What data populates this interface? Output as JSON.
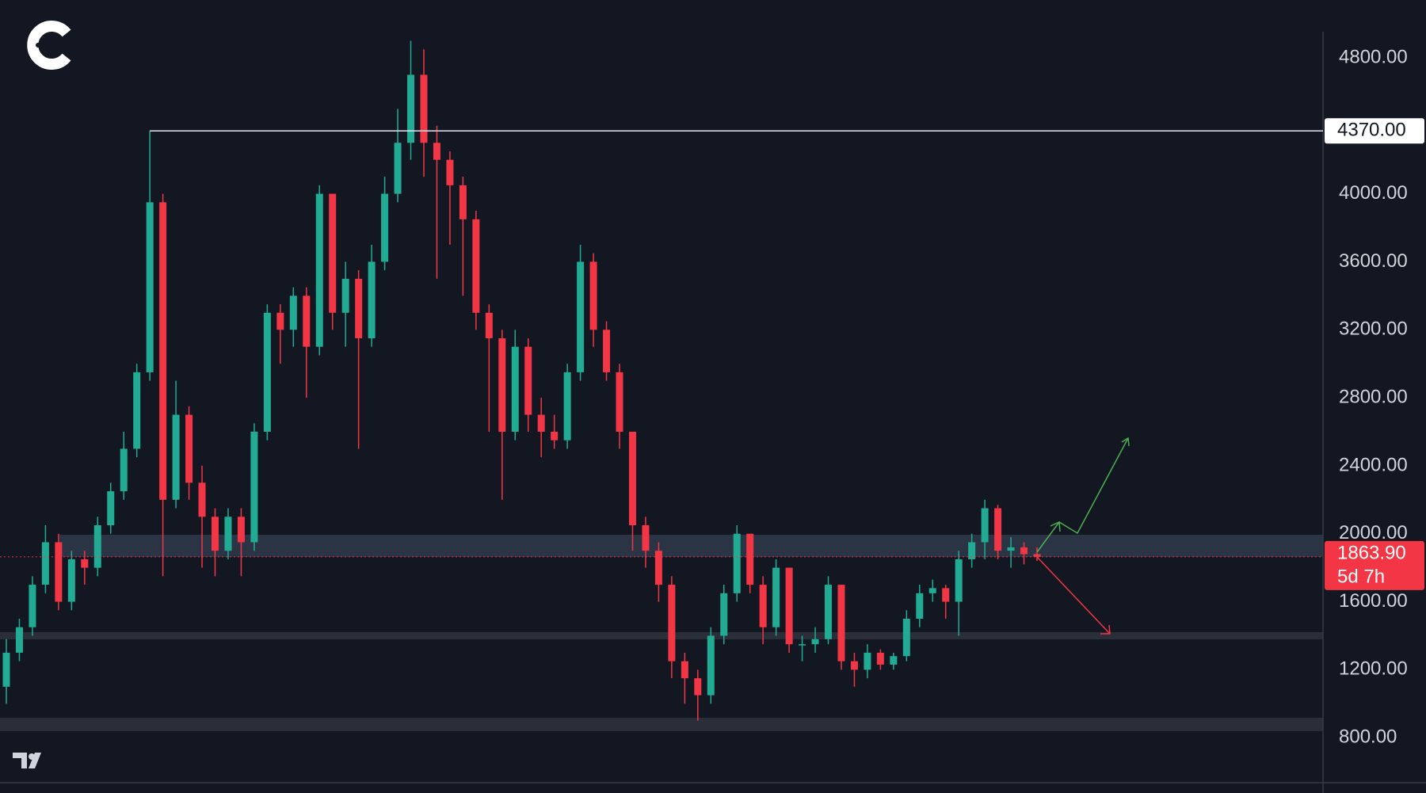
{
  "chart_data": {
    "type": "candlestick",
    "up_color": "#22ab94",
    "down_color": "#f23645",
    "ylim": [
      540,
      5140
    ],
    "yticks": [
      {
        "value": 800,
        "label": "800.00"
      },
      {
        "value": 1200,
        "label": "1200.00"
      },
      {
        "value": 1600,
        "label": "1600.00"
      },
      {
        "value": 2000,
        "label": "2000.00"
      },
      {
        "value": 2400,
        "label": "2400.00"
      },
      {
        "value": 2800,
        "label": "2800.00"
      },
      {
        "value": 3200,
        "label": "3200.00"
      },
      {
        "value": 3600,
        "label": "3600.00"
      },
      {
        "value": 4000,
        "label": "4000.00"
      },
      {
        "value": 4800,
        "label": "4800.00"
      }
    ],
    "price_line": {
      "value": 4370,
      "label": "4370.00"
    },
    "last_price": {
      "value": 1863.9,
      "label": "1863.90"
    },
    "countdown": "5d 7h",
    "series": [
      {
        "open": [
          1100,
          1300,
          1450,
          1700,
          1950,
          1600,
          1850,
          1800,
          2050,
          2250,
          2500,
          2950,
          3950,
          2200,
          2700,
          2300,
          2100,
          1900,
          2100,
          1950,
          2600,
          3300,
          3200,
          3400,
          3100,
          4000,
          3300,
          3500,
          3150,
          3600,
          4000,
          4300,
          4700,
          4300,
          4200,
          4050,
          3850,
          3300,
          3150,
          2600,
          3100,
          2700,
          2600,
          2550,
          2950,
          3600,
          3200,
          2950,
          2600,
          2050,
          1900,
          1700,
          1250,
          1150,
          1050,
          1400,
          1650,
          2000,
          1700,
          1450,
          1800,
          1350,
          1350,
          1380,
          1700,
          1250,
          1200,
          1300,
          1230,
          1280,
          1500,
          1650,
          1680,
          1600,
          1850,
          1950,
          2150,
          1900,
          1920,
          1880
        ],
        "high": [
          1380,
          1500,
          1750,
          2050,
          2000,
          1900,
          1900,
          2100,
          2300,
          2600,
          3000,
          4370,
          4000,
          2900,
          2750,
          2400,
          2150,
          2150,
          2150,
          2650,
          3350,
          3350,
          3450,
          3450,
          4050,
          4000,
          3600,
          3550,
          3700,
          4100,
          4500,
          4900,
          4850,
          4400,
          4250,
          4100,
          3900,
          3350,
          3200,
          3200,
          3150,
          2800,
          2700,
          3000,
          3700,
          3650,
          3250,
          3000,
          2600,
          2100,
          1950,
          1750,
          1300,
          1200,
          1450,
          1700,
          2050,
          2000,
          1750,
          1850,
          1800,
          1400,
          1450,
          1750,
          1700,
          1300,
          1350,
          1320,
          1300,
          1550,
          1700,
          1730,
          1700,
          1900,
          2000,
          2200,
          2170,
          1980,
          1950,
          1920
        ],
        "low": [
          1000,
          1250,
          1400,
          1650,
          1550,
          1550,
          1700,
          1750,
          2000,
          2200,
          2450,
          2900,
          1750,
          2150,
          2200,
          1800,
          1750,
          1850,
          1750,
          1900,
          2550,
          3000,
          3100,
          2800,
          3050,
          3200,
          3100,
          2500,
          3100,
          3550,
          3950,
          4200,
          4100,
          3500,
          3700,
          3400,
          3200,
          2600,
          2200,
          2550,
          2600,
          2450,
          2500,
          2500,
          2900,
          3100,
          2900,
          2500,
          1900,
          1800,
          1600,
          1150,
          1000,
          900,
          1000,
          1350,
          1600,
          1650,
          1350,
          1400,
          1300,
          1250,
          1300,
          1350,
          1200,
          1100,
          1150,
          1200,
          1200,
          1250,
          1450,
          1600,
          1500,
          1400,
          1800,
          1850,
          1850,
          1800,
          1820,
          1840
        ],
        "close": [
          1300,
          1450,
          1700,
          1950,
          1600,
          1850,
          1800,
          2050,
          2250,
          2500,
          2950,
          3950,
          2200,
          2700,
          2300,
          2100,
          1900,
          2100,
          1950,
          2600,
          3300,
          3200,
          3400,
          3100,
          4000,
          3300,
          3500,
          3150,
          3600,
          4000,
          4300,
          4700,
          4300,
          4200,
          4050,
          3850,
          3300,
          3150,
          2600,
          3100,
          2700,
          2600,
          2550,
          2950,
          3600,
          3200,
          2950,
          2600,
          2050,
          1900,
          1700,
          1250,
          1150,
          1050,
          1400,
          1650,
          2000,
          1700,
          1450,
          1800,
          1350,
          1350,
          1380,
          1700,
          1250,
          1200,
          1300,
          1230,
          1280,
          1500,
          1650,
          1680,
          1600,
          1850,
          1950,
          2150,
          1900,
          1920,
          1880,
          1863.9
        ]
      }
    ]
  }
}
